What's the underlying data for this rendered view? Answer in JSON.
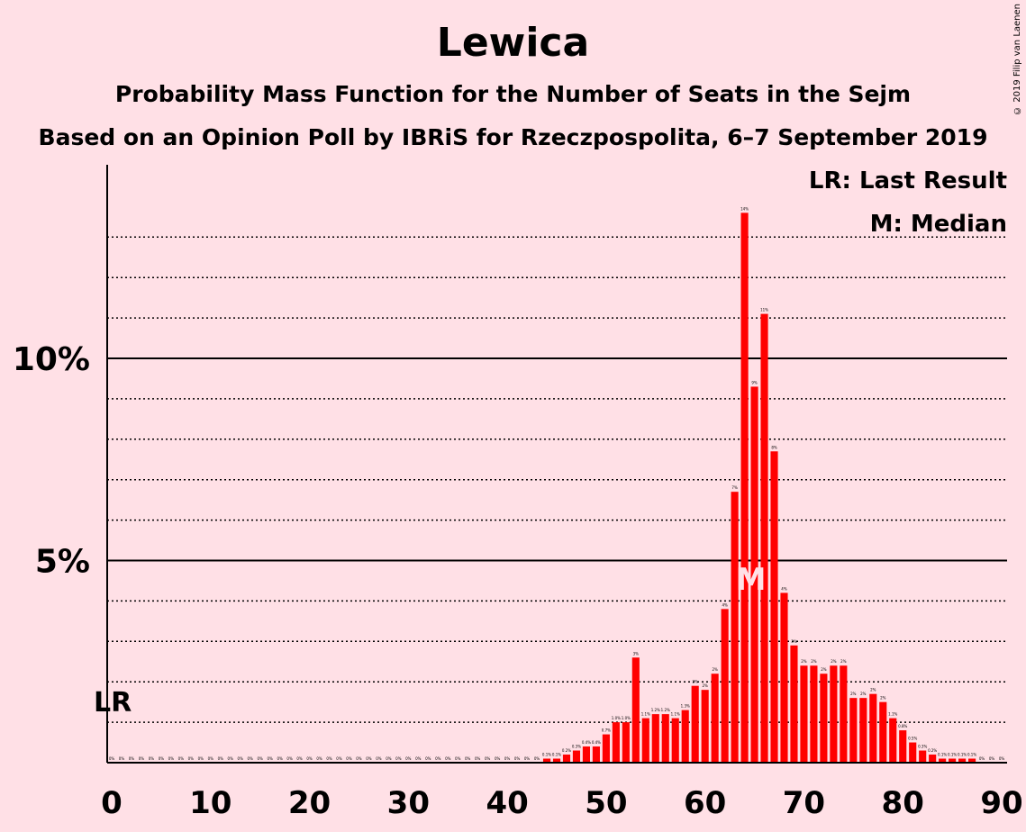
{
  "title": "Lewica",
  "subtitle": "Probability Mass Function for the Number of Seats in the Sejm",
  "subtitle2": "Based on an Opinion Poll by IBRiS for Rzeczpospolita, 6–7 September 2019",
  "copyright": "© 2019 Filip van Laenen",
  "legend": {
    "lr": "LR: Last Result",
    "median": "M: Median"
  },
  "markers": {
    "lr_label": "LR",
    "median_label": "M",
    "last_result_seats": 0,
    "median_seats": 65
  },
  "colors": {
    "background": "#ffe0e6",
    "bar": "#ff0000",
    "axis": "#000000"
  },
  "chart_data": {
    "type": "bar",
    "x": [
      0,
      1,
      2,
      3,
      4,
      5,
      6,
      7,
      8,
      9,
      10,
      11,
      12,
      13,
      14,
      15,
      16,
      17,
      18,
      19,
      20,
      21,
      22,
      23,
      24,
      25,
      26,
      27,
      28,
      29,
      30,
      31,
      32,
      33,
      34,
      35,
      36,
      37,
      38,
      39,
      40,
      41,
      42,
      43,
      44,
      45,
      46,
      47,
      48,
      49,
      50,
      51,
      52,
      53,
      54,
      55,
      56,
      57,
      58,
      59,
      60,
      61,
      62,
      63,
      64,
      65,
      66,
      67,
      68,
      69,
      70,
      71,
      72,
      73,
      74,
      75,
      76,
      77,
      78,
      79,
      80,
      81,
      82,
      83,
      84,
      85,
      86,
      87,
      88,
      89,
      90
    ],
    "values": [
      0,
      0,
      0,
      0,
      0,
      0,
      0,
      0,
      0,
      0,
      0,
      0,
      0,
      0,
      0,
      0,
      0,
      0,
      0,
      0,
      0,
      0,
      0,
      0,
      0,
      0,
      0,
      0,
      0,
      0,
      0,
      0,
      0,
      0,
      0,
      0,
      0,
      0,
      0,
      0,
      0,
      0,
      0,
      0,
      0.1,
      0.1,
      0.2,
      0.3,
      0.4,
      0.4,
      0.7,
      1.0,
      1.0,
      2.6,
      1.1,
      1.2,
      1.2,
      1.1,
      1.3,
      1.9,
      1.8,
      2.2,
      3.8,
      6.7,
      13.6,
      9.3,
      11.1,
      7.7,
      4.2,
      2.9,
      2.4,
      2.4,
      2.2,
      2.4,
      2.4,
      1.6,
      1.6,
      1.7,
      1.5,
      1.1,
      0.8,
      0.5,
      0.3,
      0.2,
      0.1,
      0.1,
      0.1,
      0.1,
      0,
      0,
      0
    ],
    "labels": [
      "0%",
      "0%",
      "0%",
      "0%",
      "0%",
      "0%",
      "0%",
      "0%",
      "0%",
      "0%",
      "0%",
      "0%",
      "0%",
      "0%",
      "0%",
      "0%",
      "0%",
      "0%",
      "0%",
      "0%",
      "0%",
      "0%",
      "0%",
      "0%",
      "0%",
      "0%",
      "0%",
      "0%",
      "0%",
      "0%",
      "0%",
      "0%",
      "0%",
      "0%",
      "0%",
      "0%",
      "0%",
      "0%",
      "0%",
      "0%",
      "0%",
      "0%",
      "0%",
      "0%",
      "0.1%",
      "0.1%",
      "0.2%",
      "0.3%",
      "0.4%",
      "0.4%",
      "0.7%",
      "1.0%",
      "1.0%",
      "3%",
      "1.1%",
      "1.2%",
      "1.2%",
      "1.1%",
      "1.3%",
      "2%",
      "2%",
      "2%",
      "4%",
      "7%",
      "14%",
      "9%",
      "11%",
      "8%",
      "4%",
      "3%",
      "2%",
      "2%",
      "2%",
      "2%",
      "2%",
      "2%",
      "2%",
      "2%",
      "2%",
      "1.1%",
      "0.8%",
      "0.5%",
      "0.3%",
      "0.2%",
      "0.1%",
      "0.1%",
      "0.1%",
      "0.1%",
      "0%",
      "0%",
      "0%"
    ],
    "xticks": [
      "0",
      "10",
      "20",
      "30",
      "40",
      "50",
      "60",
      "70",
      "80",
      "90"
    ],
    "yticks": [
      "5%",
      "10%"
    ],
    "xlim": [
      0,
      90
    ],
    "ylim": [
      0,
      14.8
    ],
    "grid_dotted": [
      1,
      2,
      3,
      4,
      6,
      7,
      8,
      9,
      11,
      12,
      13
    ],
    "grid_solid": [
      5,
      10
    ]
  }
}
